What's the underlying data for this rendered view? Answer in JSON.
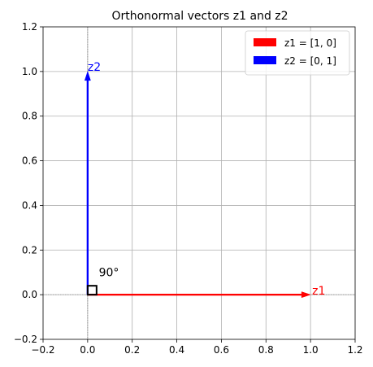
{
  "chart_data": {
    "type": "vector",
    "title": "Orthonormal vectors z1 and z2",
    "xlabel": "",
    "ylabel": "",
    "xlim": [
      -0.2,
      1.2
    ],
    "ylim": [
      -0.2,
      1.2
    ],
    "xticks": [
      -0.2,
      0.0,
      0.2,
      0.4,
      0.6,
      0.8,
      1.0,
      1.2
    ],
    "yticks": [
      -0.2,
      0.0,
      0.2,
      0.4,
      0.6,
      0.8,
      1.0,
      1.2
    ],
    "xtick_labels": [
      "−0.2",
      "0.0",
      "0.2",
      "0.4",
      "0.6",
      "0.8",
      "1.0",
      "1.2"
    ],
    "ytick_labels": [
      "−0.2",
      "0.0",
      "0.2",
      "0.4",
      "0.6",
      "0.8",
      "1.0",
      "1.2"
    ],
    "grid": true,
    "legend_position": "top-right",
    "vectors": [
      {
        "name": "z1",
        "legend": "z1 = [1, 0]",
        "origin": [
          0,
          0
        ],
        "components": [
          1,
          0
        ],
        "color": "#ff0000",
        "label": "z1"
      },
      {
        "name": "z2",
        "legend": "z2 = [0, 1]",
        "origin": [
          0,
          0
        ],
        "components": [
          0,
          1
        ],
        "color": "#0000ff",
        "label": "z2"
      }
    ],
    "angle_marker": {
      "label": "90°",
      "corner": [
        0,
        0
      ],
      "size": 0.04
    }
  }
}
